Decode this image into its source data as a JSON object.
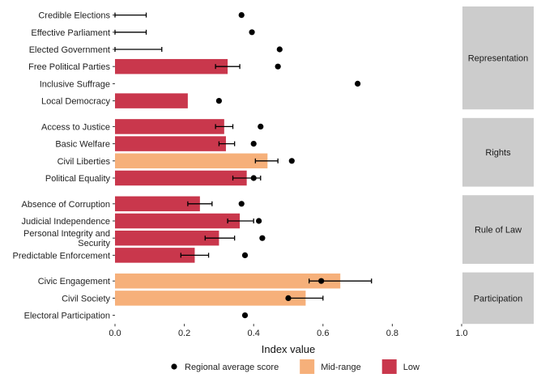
{
  "chart_data": {
    "type": "bar",
    "xlabel": "Index value",
    "xlim": [
      0,
      1
    ],
    "x_ticks": [
      "0.0",
      "0.2",
      "0.4",
      "0.6",
      "0.8",
      "1.0"
    ],
    "x_tick_values": [
      0,
      0.2,
      0.4,
      0.6,
      0.8,
      1.0
    ],
    "colors": {
      "Mid-range": "#f6b07a",
      "Low": "#c9374c",
      "dot": "#000000",
      "strip": "#cccccc"
    },
    "legend": [
      {
        "key": "dot",
        "label": "Regional average score"
      },
      {
        "key": "Mid-range",
        "label": "Mid-range"
      },
      {
        "key": "Low",
        "label": "Low"
      }
    ],
    "facets": [
      {
        "name": "Representation",
        "rows": [
          {
            "label": [
              "Credible Elections"
            ],
            "value": null,
            "level": null,
            "err": [
              0.0,
              0.09
            ],
            "avg": 0.365
          },
          {
            "label": [
              "Effective Parliament"
            ],
            "value": null,
            "level": null,
            "err": [
              0.0,
              0.09
            ],
            "avg": 0.395
          },
          {
            "label": [
              "Elected Government"
            ],
            "value": null,
            "level": null,
            "err": [
              0.0,
              0.135
            ],
            "avg": 0.475
          },
          {
            "label": [
              "Free Political Parties"
            ],
            "value": 0.325,
            "level": "Low",
            "err": [
              0.29,
              0.36
            ],
            "avg": 0.47
          },
          {
            "label": [
              "Inclusive Suffrage"
            ],
            "value": null,
            "level": null,
            "err": null,
            "avg": 0.7
          },
          {
            "label": [
              "Local Democracy"
            ],
            "value": 0.21,
            "level": "Low",
            "err": null,
            "avg": 0.3
          }
        ]
      },
      {
        "name": "Rights",
        "rows": [
          {
            "label": [
              "Access to Justice"
            ],
            "value": 0.315,
            "level": "Low",
            "err": [
              0.29,
              0.34
            ],
            "avg": 0.42
          },
          {
            "label": [
              "Basic Welfare"
            ],
            "value": 0.32,
            "level": "Low",
            "err": [
              0.3,
              0.345
            ],
            "avg": 0.4
          },
          {
            "label": [
              "Civil Liberties"
            ],
            "value": 0.44,
            "level": "Mid-range",
            "err": [
              0.405,
              0.47
            ],
            "avg": 0.51
          },
          {
            "label": [
              "Political Equality"
            ],
            "value": 0.38,
            "level": "Low",
            "err": [
              0.34,
              0.42
            ],
            "avg": 0.4
          }
        ]
      },
      {
        "name": "Rule of Law",
        "rows": [
          {
            "label": [
              "Absence of Corruption"
            ],
            "value": 0.245,
            "level": "Low",
            "err": [
              0.21,
              0.28
            ],
            "avg": 0.365
          },
          {
            "label": [
              "Judicial Independence"
            ],
            "value": 0.36,
            "level": "Low",
            "err": [
              0.325,
              0.4
            ],
            "avg": 0.415
          },
          {
            "label": [
              "Personal Integrity and",
              "Security"
            ],
            "value": 0.3,
            "level": "Low",
            "err": [
              0.26,
              0.345
            ],
            "avg": 0.425
          },
          {
            "label": [
              "Predictable Enforcement"
            ],
            "value": 0.23,
            "level": "Low",
            "err": [
              0.19,
              0.27
            ],
            "avg": 0.375
          }
        ]
      },
      {
        "name": "Participation",
        "rows": [
          {
            "label": [
              "Civic Engagement"
            ],
            "value": 0.65,
            "level": "Mid-range",
            "err": [
              0.56,
              0.74
            ],
            "avg": 0.595
          },
          {
            "label": [
              "Civil Society"
            ],
            "value": 0.55,
            "level": "Mid-range",
            "err": [
              0.5,
              0.6
            ],
            "avg": 0.5
          },
          {
            "label": [
              "Electoral Participation"
            ],
            "value": null,
            "level": null,
            "err": null,
            "avg": 0.375
          }
        ]
      }
    ]
  }
}
